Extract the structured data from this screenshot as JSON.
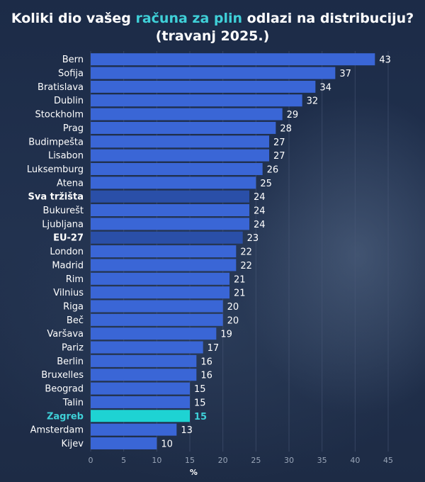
{
  "header": {
    "title_part1": "Koliki dio vašeg ",
    "title_highlight": "računa za plin",
    "title_part2": " odlazi na distribuciju?",
    "title_line2": "(travanj 2025.)"
  },
  "colors": {
    "bar": "#3a66d6",
    "bar_aggregate": "#2a4fa8",
    "bar_highlight": "#1ed3d3",
    "highlight_text": "#3fd0d8",
    "grid": "#4a5a78"
  },
  "chart_data": {
    "type": "bar",
    "orientation": "horizontal",
    "title": "Koliki dio vašeg računa za plin odlazi na distribuciju? (travanj 2025.)",
    "xlabel": "%",
    "ylabel": "",
    "xlim": [
      0,
      45
    ],
    "xticks": [
      0,
      5,
      10,
      15,
      20,
      25,
      30,
      35,
      40,
      45
    ],
    "grid": true,
    "categories": [
      "Bern",
      "Sofija",
      "Bratislava",
      "Dublin",
      "Stockholm",
      "Prag",
      "Budimpešta",
      "Lisabon",
      "Luksemburg",
      "Atena",
      "Sva tržišta",
      "Bukurešt",
      "Ljubljana",
      "EU-27",
      "London",
      "Madrid",
      "Rim",
      "Vilnius",
      "Riga",
      "Beč",
      "Varšava",
      "Pariz",
      "Berlin",
      "Bruxelles",
      "Beograd",
      "Talin",
      "Zagreb",
      "Amsterdam",
      "Kijev"
    ],
    "values": [
      43,
      37,
      34,
      32,
      29,
      28,
      27,
      27,
      26,
      25,
      24,
      24,
      24,
      23,
      22,
      22,
      21,
      21,
      20,
      20,
      19,
      17,
      16,
      16,
      15,
      15,
      15,
      13,
      10
    ],
    "bold_categories": [
      "Sva tržišta",
      "EU-27"
    ],
    "highlight_category": "Zagreb"
  }
}
